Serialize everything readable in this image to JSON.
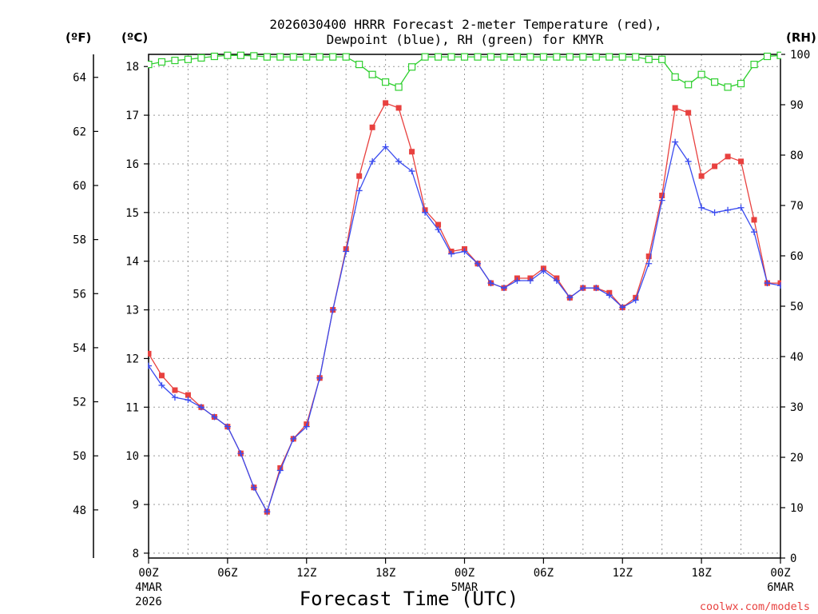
{
  "chart_data": {
    "type": "line",
    "title": "2026030400 HRRR Forecast 2-meter Temperature (red),",
    "subtitle": "Dewpoint (blue), RH (green) for KMYR",
    "xlabel": "Forecast Time (UTC)",
    "credit": "coolwx.com/models",
    "left_outer_unit": "(ºF)",
    "left_inner_unit": "(ºC)",
    "right_unit": "(RH)",
    "x_range_hours": [
      0,
      48
    ],
    "celsius_range": [
      7.9,
      18.25
    ],
    "rh_range": [
      0,
      100
    ],
    "grid": true,
    "celsius_ticks": [
      "8",
      "9",
      "10",
      "11",
      "12",
      "13",
      "14",
      "15",
      "16",
      "17",
      "18"
    ],
    "fahrenheit_ticks": [
      "48",
      "50",
      "52",
      "54",
      "56",
      "58",
      "60",
      "62",
      "64"
    ],
    "rh_ticks": [
      "0",
      "10",
      "20",
      "30",
      "40",
      "50",
      "60",
      "70",
      "80",
      "90",
      "100"
    ],
    "x_ticks": [
      {
        "hour": 0,
        "label": "00Z",
        "line2": "4MAR",
        "line3": "2026"
      },
      {
        "hour": 6,
        "label": "06Z",
        "line2": "",
        "line3": ""
      },
      {
        "hour": 12,
        "label": "12Z",
        "line2": "",
        "line3": ""
      },
      {
        "hour": 18,
        "label": "18Z",
        "line2": "",
        "line3": ""
      },
      {
        "hour": 24,
        "label": "00Z",
        "line2": "5MAR",
        "line3": ""
      },
      {
        "hour": 30,
        "label": "06Z",
        "line2": "",
        "line3": ""
      },
      {
        "hour": 36,
        "label": "12Z",
        "line2": "",
        "line3": ""
      },
      {
        "hour": 42,
        "label": "18Z",
        "line2": "",
        "line3": ""
      },
      {
        "hour": 48,
        "label": "00Z",
        "line2": "6MAR",
        "line3": ""
      }
    ],
    "series": [
      {
        "name": "Temperature",
        "unit": "C",
        "color": "#e8413f",
        "marker": "filled-square",
        "hours": [
          0,
          1,
          2,
          3,
          4,
          5,
          6,
          7,
          8,
          9,
          10,
          11,
          12,
          13,
          14,
          15,
          16,
          17,
          18,
          19,
          20,
          21,
          22,
          23,
          24,
          25,
          26,
          27,
          28,
          29,
          30,
          31,
          32,
          33,
          34,
          35,
          36,
          37,
          38,
          39,
          40,
          41,
          42,
          43,
          44,
          45,
          46,
          47,
          48
        ],
        "values": [
          12.1,
          11.65,
          11.35,
          11.25,
          11.0,
          10.8,
          10.6,
          10.05,
          9.35,
          8.85,
          9.75,
          10.35,
          10.65,
          11.6,
          13.0,
          14.25,
          15.75,
          16.75,
          17.25,
          17.15,
          16.25,
          15.05,
          14.75,
          14.2,
          14.25,
          13.95,
          13.55,
          13.45,
          13.65,
          13.65,
          13.85,
          13.65,
          13.25,
          13.45,
          13.45,
          13.35,
          13.05,
          13.25,
          14.1,
          15.35,
          17.15,
          17.05,
          15.75,
          15.95,
          16.15,
          16.05,
          14.85,
          13.55,
          13.55
        ]
      },
      {
        "name": "Dewpoint",
        "unit": "C",
        "color": "#3a4bef",
        "marker": "plus",
        "hours": [
          0,
          1,
          2,
          3,
          4,
          5,
          6,
          7,
          8,
          9,
          10,
          11,
          12,
          13,
          14,
          15,
          16,
          17,
          18,
          19,
          20,
          21,
          22,
          23,
          24,
          25,
          26,
          27,
          28,
          29,
          30,
          31,
          32,
          33,
          34,
          35,
          36,
          37,
          38,
          39,
          40,
          41,
          42,
          43,
          44,
          45,
          46,
          47,
          48
        ],
        "values": [
          11.85,
          11.45,
          11.2,
          11.15,
          11.0,
          10.8,
          10.6,
          10.05,
          9.35,
          8.85,
          9.7,
          10.35,
          10.6,
          11.6,
          13.0,
          14.2,
          15.45,
          16.05,
          16.35,
          16.05,
          15.85,
          15.0,
          14.65,
          14.15,
          14.2,
          13.95,
          13.55,
          13.45,
          13.6,
          13.6,
          13.8,
          13.6,
          13.25,
          13.45,
          13.45,
          13.3,
          13.05,
          13.2,
          13.95,
          15.25,
          16.45,
          16.05,
          15.1,
          15.0,
          15.05,
          15.1,
          14.6,
          13.55,
          13.5
        ]
      },
      {
        "name": "RH",
        "unit": "%",
        "color": "#2fcf2f",
        "marker": "open-square",
        "hours": [
          0,
          1,
          2,
          3,
          4,
          5,
          6,
          7,
          8,
          9,
          10,
          11,
          12,
          13,
          14,
          15,
          16,
          17,
          18,
          19,
          20,
          21,
          22,
          23,
          24,
          25,
          26,
          27,
          28,
          29,
          30,
          31,
          32,
          33,
          34,
          35,
          36,
          37,
          38,
          39,
          40,
          41,
          42,
          43,
          44,
          45,
          46,
          47,
          48
        ],
        "values": [
          98,
          98.5,
          98.8,
          99,
          99.3,
          99.6,
          99.8,
          99.8,
          99.7,
          99.5,
          99.5,
          99.5,
          99.5,
          99.5,
          99.5,
          99.5,
          98,
          96,
          94.5,
          93.5,
          97.5,
          99.5,
          99.5,
          99.5,
          99.5,
          99.5,
          99.5,
          99.5,
          99.5,
          99.5,
          99.5,
          99.5,
          99.5,
          99.5,
          99.5,
          99.5,
          99.5,
          99.5,
          99,
          99,
          95.5,
          94,
          96,
          94.5,
          93.5,
          94.2,
          98,
          99.6,
          99.8
        ]
      }
    ]
  }
}
